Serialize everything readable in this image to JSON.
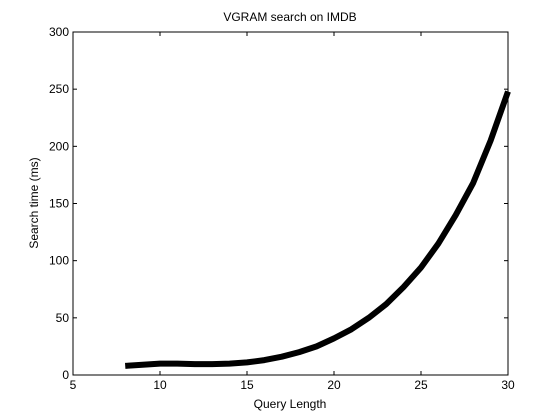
{
  "chart_data": {
    "type": "line",
    "title": "VGRAM search on IMDB",
    "xlabel": "Query Length",
    "ylabel": "Search time (ms)",
    "xlim": [
      5,
      30
    ],
    "ylim": [
      0,
      300
    ],
    "xticks": [
      5,
      10,
      15,
      20,
      25,
      30
    ],
    "yticks": [
      0,
      50,
      100,
      150,
      200,
      250,
      300
    ],
    "grid": false,
    "series": [
      {
        "color": "#000000",
        "x": [
          8,
          9,
          10,
          11,
          12,
          13,
          14,
          15,
          16,
          17,
          18,
          19,
          20,
          21,
          22,
          23,
          24,
          25,
          26,
          27,
          28,
          29,
          30
        ],
        "y": [
          8,
          9,
          10,
          10,
          9.5,
          9.5,
          10,
          11,
          13,
          16,
          20,
          25,
          32,
          40,
          50,
          62,
          77,
          94,
          115,
          140,
          168,
          205,
          248
        ]
      }
    ]
  }
}
